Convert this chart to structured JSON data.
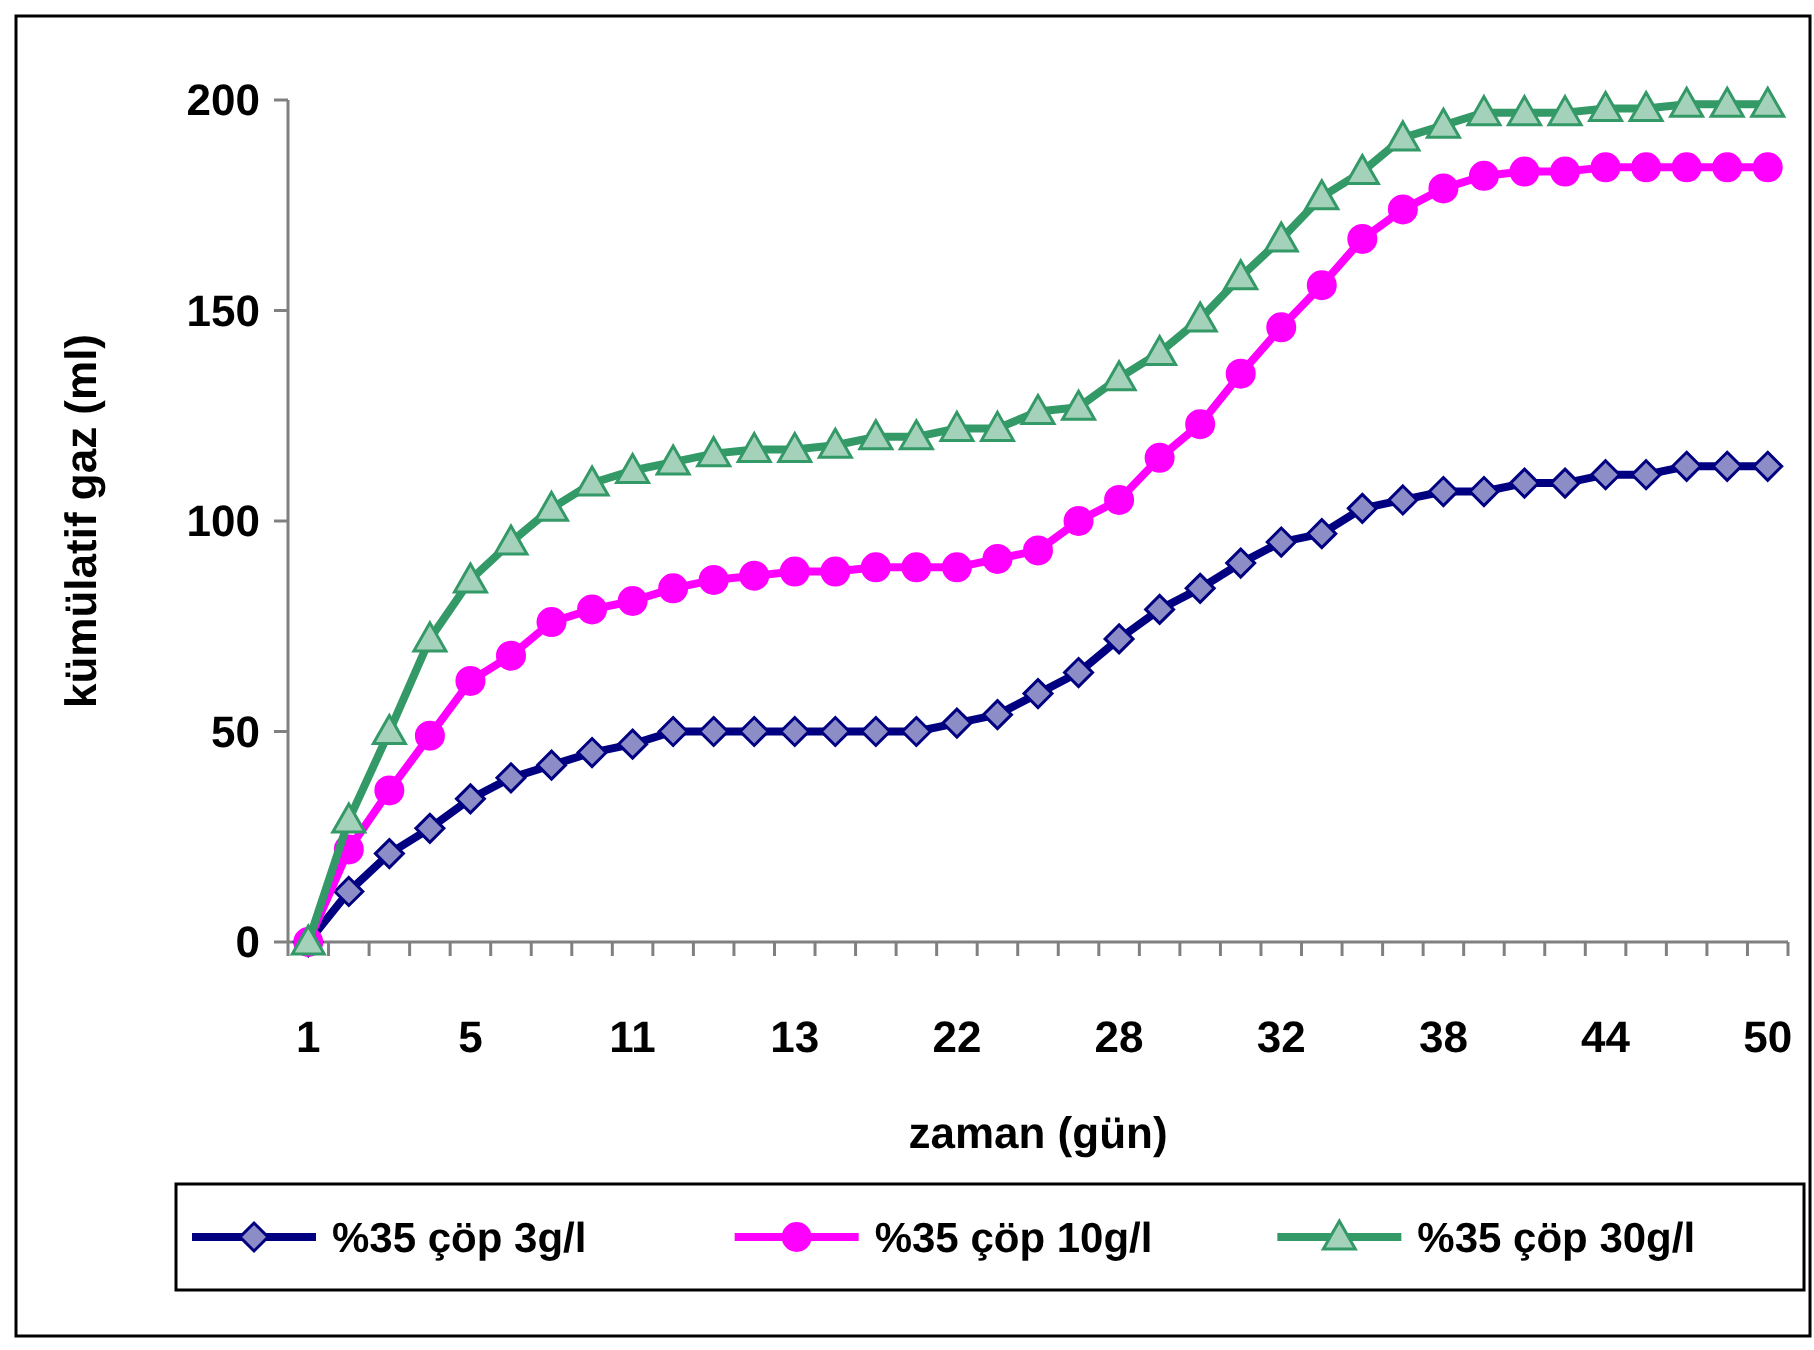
{
  "chart_data": {
    "type": "line",
    "xlabel": "zaman (gün)",
    "ylabel": "kümülatif gaz (ml)",
    "categories": [
      "1",
      null,
      null,
      null,
      "5",
      null,
      null,
      null,
      "11",
      null,
      null,
      null,
      "13",
      null,
      null,
      null,
      "22",
      null,
      null,
      null,
      "28",
      null,
      null,
      null,
      "32",
      null,
      null,
      null,
      "38",
      null,
      null,
      null,
      "44",
      null,
      null,
      null,
      "50"
    ],
    "ylim": [
      0,
      200
    ],
    "yticks": [
      0,
      50,
      100,
      150,
      200
    ],
    "grid": false,
    "legend": "bottom",
    "line_style": "solid",
    "series": [
      {
        "name": "%35 çöp 3g/l",
        "color": "#000080",
        "marker": "diamond",
        "values": [
          0,
          12,
          21,
          27,
          34,
          39,
          42,
          45,
          47,
          50,
          50,
          50,
          50,
          50,
          50,
          50,
          52,
          54,
          59,
          64,
          72,
          79,
          84,
          90,
          95,
          97,
          103,
          105,
          107,
          107,
          109,
          109,
          111,
          111,
          113,
          113,
          113
        ]
      },
      {
        "name": "%35 çöp 10g/l",
        "color": "#ff00ff",
        "marker": "circle",
        "values": [
          0,
          22,
          36,
          49,
          62,
          68,
          76,
          79,
          81,
          84,
          86,
          87,
          88,
          88,
          89,
          89,
          89,
          91,
          93,
          100,
          105,
          115,
          123,
          135,
          146,
          156,
          167,
          174,
          179,
          182,
          183,
          183,
          184,
          184,
          184,
          184,
          184
        ]
      },
      {
        "name": "%35 çöp 30g/l",
        "color": "#339966",
        "marker": "triangle",
        "values": [
          0,
          29,
          50,
          72,
          86,
          95,
          103,
          109,
          112,
          114,
          116,
          117,
          117,
          118,
          120,
          120,
          122,
          122,
          126,
          127,
          134,
          140,
          148,
          158,
          167,
          177,
          183,
          191,
          194,
          197,
          197,
          197,
          198,
          198,
          199,
          199,
          199
        ]
      }
    ]
  }
}
